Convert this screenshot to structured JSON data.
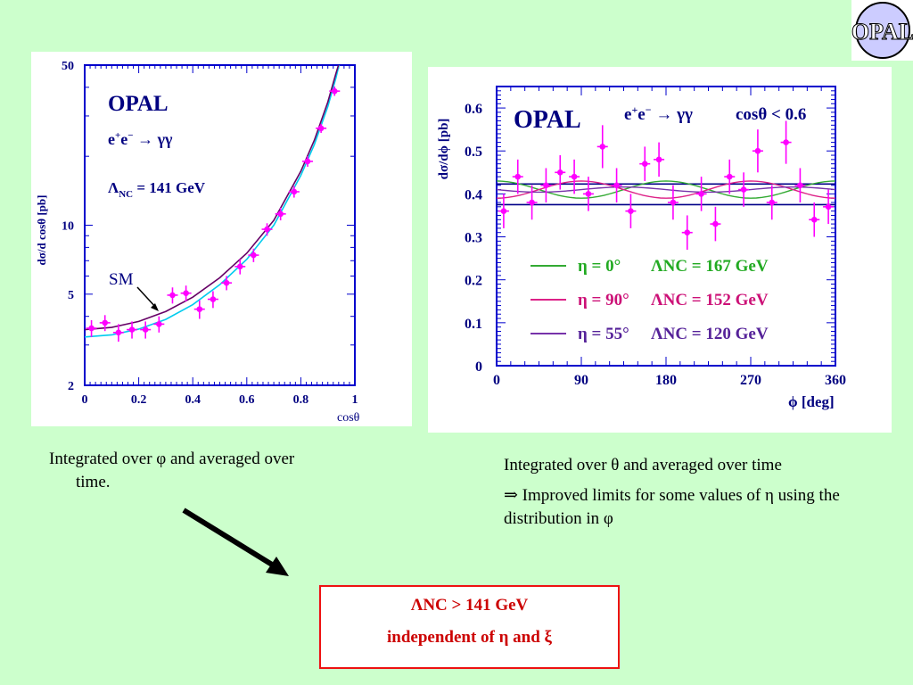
{
  "logo": {
    "text": "OPAL"
  },
  "chart_data": [
    {
      "type": "scatter",
      "title": "OPAL",
      "subtitle": "e+e− → γγ",
      "annotation": "ΛNC = 141 GeV",
      "sm_label": "SM",
      "xlabel": "cosθ",
      "ylabel": "dσ/d cosθ [pb]",
      "xlim": [
        0,
        1
      ],
      "ylim": [
        2,
        50
      ],
      "yscale": "log",
      "x_ticks": [
        "0",
        "0.2",
        "0.4",
        "0.6",
        "0.8",
        "1"
      ],
      "y_ticks": [
        "2",
        "5",
        "10",
        "50"
      ],
      "points": [
        {
          "x": 0.025,
          "y": 3.55,
          "err": 0.3
        },
        {
          "x": 0.075,
          "y": 3.75,
          "err": 0.3
        },
        {
          "x": 0.125,
          "y": 3.4,
          "err": 0.3
        },
        {
          "x": 0.175,
          "y": 3.5,
          "err": 0.3
        },
        {
          "x": 0.225,
          "y": 3.5,
          "err": 0.3
        },
        {
          "x": 0.275,
          "y": 3.7,
          "err": 0.3
        },
        {
          "x": 0.325,
          "y": 4.95,
          "err": 0.4
        },
        {
          "x": 0.375,
          "y": 5.05,
          "err": 0.4
        },
        {
          "x": 0.425,
          "y": 4.3,
          "err": 0.4
        },
        {
          "x": 0.475,
          "y": 4.75,
          "err": 0.4
        },
        {
          "x": 0.525,
          "y": 5.6,
          "err": 0.4
        },
        {
          "x": 0.575,
          "y": 6.6,
          "err": 0.5
        },
        {
          "x": 0.625,
          "y": 7.4,
          "err": 0.5
        },
        {
          "x": 0.675,
          "y": 9.6,
          "err": 0.6
        },
        {
          "x": 0.725,
          "y": 11.2,
          "err": 0.7
        },
        {
          "x": 0.775,
          "y": 14.0,
          "err": 0.8
        },
        {
          "x": 0.825,
          "y": 19.0,
          "err": 1.0
        },
        {
          "x": 0.875,
          "y": 26.5,
          "err": 1.2
        },
        {
          "x": 0.925,
          "y": 38.5,
          "err": 1.8
        }
      ],
      "curves": [
        {
          "color": "#00ccee",
          "x": [
            0.0,
            0.1,
            0.2,
            0.3,
            0.4,
            0.5,
            0.6,
            0.7,
            0.8,
            0.85,
            0.9,
            0.93,
            0.95
          ],
          "y": [
            3.25,
            3.32,
            3.52,
            3.88,
            4.5,
            5.5,
            7.1,
            10.0,
            16.5,
            22.5,
            33.0,
            44.0,
            55.0
          ]
        },
        {
          "color": "#660066",
          "x": [
            0.0,
            0.1,
            0.2,
            0.3,
            0.4,
            0.5,
            0.6,
            0.7,
            0.8,
            0.85,
            0.9,
            0.93,
            0.95
          ],
          "y": [
            3.5,
            3.58,
            3.8,
            4.2,
            4.85,
            5.9,
            7.55,
            10.5,
            17.2,
            23.5,
            34.5,
            46.0,
            58.0
          ]
        }
      ],
      "colors": {
        "points": "#ff00ff",
        "axes": "#0000cc",
        "text": "#000080"
      }
    },
    {
      "type": "scatter",
      "title": "OPAL",
      "subtitle": "e+e− → γγ",
      "cut": "cosθ < 0.6",
      "xlabel": "ϕ [deg]",
      "ylabel": "dσ/dϕ [pb]",
      "xlim": [
        0,
        360
      ],
      "ylim": [
        0,
        0.65
      ],
      "x_ticks": [
        "0",
        "90",
        "180",
        "270",
        "360"
      ],
      "y_ticks": [
        "0",
        "0.1",
        "0.2",
        "0.3",
        "0.4",
        "0.5",
        "0.6"
      ],
      "points": [
        {
          "x": 7.5,
          "y": 0.36,
          "err": 0.04
        },
        {
          "x": 22.5,
          "y": 0.44,
          "err": 0.04
        },
        {
          "x": 37.5,
          "y": 0.38,
          "err": 0.04
        },
        {
          "x": 52.5,
          "y": 0.42,
          "err": 0.04
        },
        {
          "x": 67.5,
          "y": 0.45,
          "err": 0.04
        },
        {
          "x": 82.5,
          "y": 0.44,
          "err": 0.04
        },
        {
          "x": 97.5,
          "y": 0.4,
          "err": 0.04
        },
        {
          "x": 112.5,
          "y": 0.51,
          "err": 0.05
        },
        {
          "x": 127.5,
          "y": 0.42,
          "err": 0.04
        },
        {
          "x": 142.5,
          "y": 0.36,
          "err": 0.04
        },
        {
          "x": 157.5,
          "y": 0.47,
          "err": 0.04
        },
        {
          "x": 172.5,
          "y": 0.48,
          "err": 0.04
        },
        {
          "x": 187.5,
          "y": 0.38,
          "err": 0.04
        },
        {
          "x": 202.5,
          "y": 0.31,
          "err": 0.04
        },
        {
          "x": 217.5,
          "y": 0.4,
          "err": 0.04
        },
        {
          "x": 232.5,
          "y": 0.33,
          "err": 0.04
        },
        {
          "x": 247.5,
          "y": 0.44,
          "err": 0.04
        },
        {
          "x": 262.5,
          "y": 0.41,
          "err": 0.04
        },
        {
          "x": 277.5,
          "y": 0.5,
          "err": 0.05
        },
        {
          "x": 292.5,
          "y": 0.38,
          "err": 0.04
        },
        {
          "x": 307.5,
          "y": 0.52,
          "err": 0.05
        },
        {
          "x": 322.5,
          "y": 0.42,
          "err": 0.04
        },
        {
          "x": 337.5,
          "y": 0.34,
          "err": 0.04
        },
        {
          "x": 352.5,
          "y": 0.37,
          "err": 0.04
        }
      ],
      "series": [
        {
          "name": "η = 0°   ΛNC = 167 GeV",
          "eta": "η = 0°",
          "lambda": "ΛNC = 167 GeV",
          "color": "#33aa33",
          "text_color": "#22aa22"
        },
        {
          "name": "η = 90°   ΛNC = 152 GeV",
          "eta": "η = 90°",
          "lambda": "ΛNC = 152 GeV",
          "color": "#dd2288",
          "text_color": "#cc1177"
        },
        {
          "name": "η = 55°   ΛNC = 120 GeV",
          "eta": "η = 55°",
          "lambda": "ΛNC = 120 GeV",
          "color": "#7733aa",
          "text_color": "#552299"
        }
      ],
      "reference_lines": [
        0.423,
        0.375
      ],
      "colors": {
        "points": "#ff00ff",
        "axes": "#0000cc",
        "text": "#000080",
        "ref_line": "#000088"
      }
    }
  ],
  "captions": {
    "left_line1": "Integrated over φ and averaged over",
    "left_line2": "time.",
    "right_para1": "Integrated over θ and averaged over time",
    "right_para2": "⇒ Improved limits for some values of η using the distribution in φ"
  },
  "result": {
    "line1": "ΛNC > 141 GeV",
    "line2": "independent of η and ξ"
  }
}
